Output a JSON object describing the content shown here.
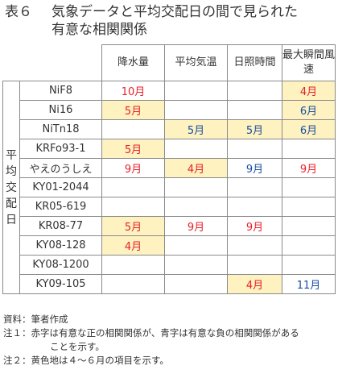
{
  "title": {
    "label": "表６",
    "line1": "気象データと平均交配日の間で見られた",
    "line2": "有意な相関関係"
  },
  "table": {
    "headers": [
      "降水量",
      "平均気温",
      "日照時間",
      "最大瞬間風速"
    ],
    "group_label": [
      "平",
      "均",
      "交",
      "配",
      "日"
    ],
    "rows": [
      {
        "name": "NiF8",
        "cells": [
          {
            "v": "10月",
            "c": "red",
            "hl": false
          },
          {
            "v": "",
            "c": "",
            "hl": false
          },
          {
            "v": "",
            "c": "",
            "hl": false
          },
          {
            "v": "4月",
            "c": "red",
            "hl": true
          }
        ]
      },
      {
        "name": "Ni16",
        "cells": [
          {
            "v": "5月",
            "c": "red",
            "hl": true
          },
          {
            "v": "",
            "c": "",
            "hl": false
          },
          {
            "v": "",
            "c": "",
            "hl": false
          },
          {
            "v": "6月",
            "c": "blue",
            "hl": true
          }
        ]
      },
      {
        "name": "NiTn18",
        "cells": [
          {
            "v": "",
            "c": "",
            "hl": false
          },
          {
            "v": "5月",
            "c": "blue",
            "hl": true
          },
          {
            "v": "5月",
            "c": "blue",
            "hl": true
          },
          {
            "v": "6月",
            "c": "blue",
            "hl": true
          }
        ]
      },
      {
        "name": "KRFo93-1",
        "cells": [
          {
            "v": "5月",
            "c": "red",
            "hl": true
          },
          {
            "v": "",
            "c": "",
            "hl": false
          },
          {
            "v": "",
            "c": "",
            "hl": false
          },
          {
            "v": "",
            "c": "",
            "hl": false
          }
        ]
      },
      {
        "name": "やえのうしえ",
        "cells": [
          {
            "v": "9月",
            "c": "red",
            "hl": false
          },
          {
            "v": "4月",
            "c": "red",
            "hl": true
          },
          {
            "v": "9月",
            "c": "blue",
            "hl": false
          },
          {
            "v": "9月",
            "c": "red",
            "hl": false
          }
        ]
      },
      {
        "name": "KY01-2044",
        "cells": [
          {
            "v": "",
            "c": "",
            "hl": false
          },
          {
            "v": "",
            "c": "",
            "hl": false
          },
          {
            "v": "",
            "c": "",
            "hl": false
          },
          {
            "v": "",
            "c": "",
            "hl": false
          }
        ]
      },
      {
        "name": "KR05-619",
        "cells": [
          {
            "v": "",
            "c": "",
            "hl": false
          },
          {
            "v": "",
            "c": "",
            "hl": false
          },
          {
            "v": "",
            "c": "",
            "hl": false
          },
          {
            "v": "",
            "c": "",
            "hl": false
          }
        ]
      },
      {
        "name": "KR08-77",
        "cells": [
          {
            "v": "5月",
            "c": "red",
            "hl": true
          },
          {
            "v": "9月",
            "c": "red",
            "hl": false
          },
          {
            "v": "9月",
            "c": "red",
            "hl": false
          },
          {
            "v": "",
            "c": "",
            "hl": false
          }
        ]
      },
      {
        "name": "KY08-128",
        "cells": [
          {
            "v": "4月",
            "c": "red",
            "hl": true
          },
          {
            "v": "",
            "c": "",
            "hl": false
          },
          {
            "v": "",
            "c": "",
            "hl": false
          },
          {
            "v": "",
            "c": "",
            "hl": false
          }
        ]
      },
      {
        "name": "KY08-1200",
        "cells": [
          {
            "v": "",
            "c": "",
            "hl": false
          },
          {
            "v": "",
            "c": "",
            "hl": false
          },
          {
            "v": "",
            "c": "",
            "hl": false
          },
          {
            "v": "",
            "c": "",
            "hl": false
          }
        ]
      },
      {
        "name": "KY09-105",
        "cells": [
          {
            "v": "",
            "c": "",
            "hl": false
          },
          {
            "v": "",
            "c": "",
            "hl": false
          },
          {
            "v": "4月",
            "c": "red",
            "hl": true
          },
          {
            "v": "11月",
            "c": "blue",
            "hl": false
          }
        ]
      }
    ],
    "highlight_color": "#fdf2c0",
    "positive_color": "#e8202a",
    "negative_color": "#1a4ea0"
  },
  "notes": {
    "source": "資料：筆者作成",
    "note1_a": "注１：赤字は有意な正の相関関係が、青字は有意な負の相関関係がある",
    "note1_b": "ことを示す。",
    "note2": "注２：黄色地は４～６月の項目を示す。"
  }
}
